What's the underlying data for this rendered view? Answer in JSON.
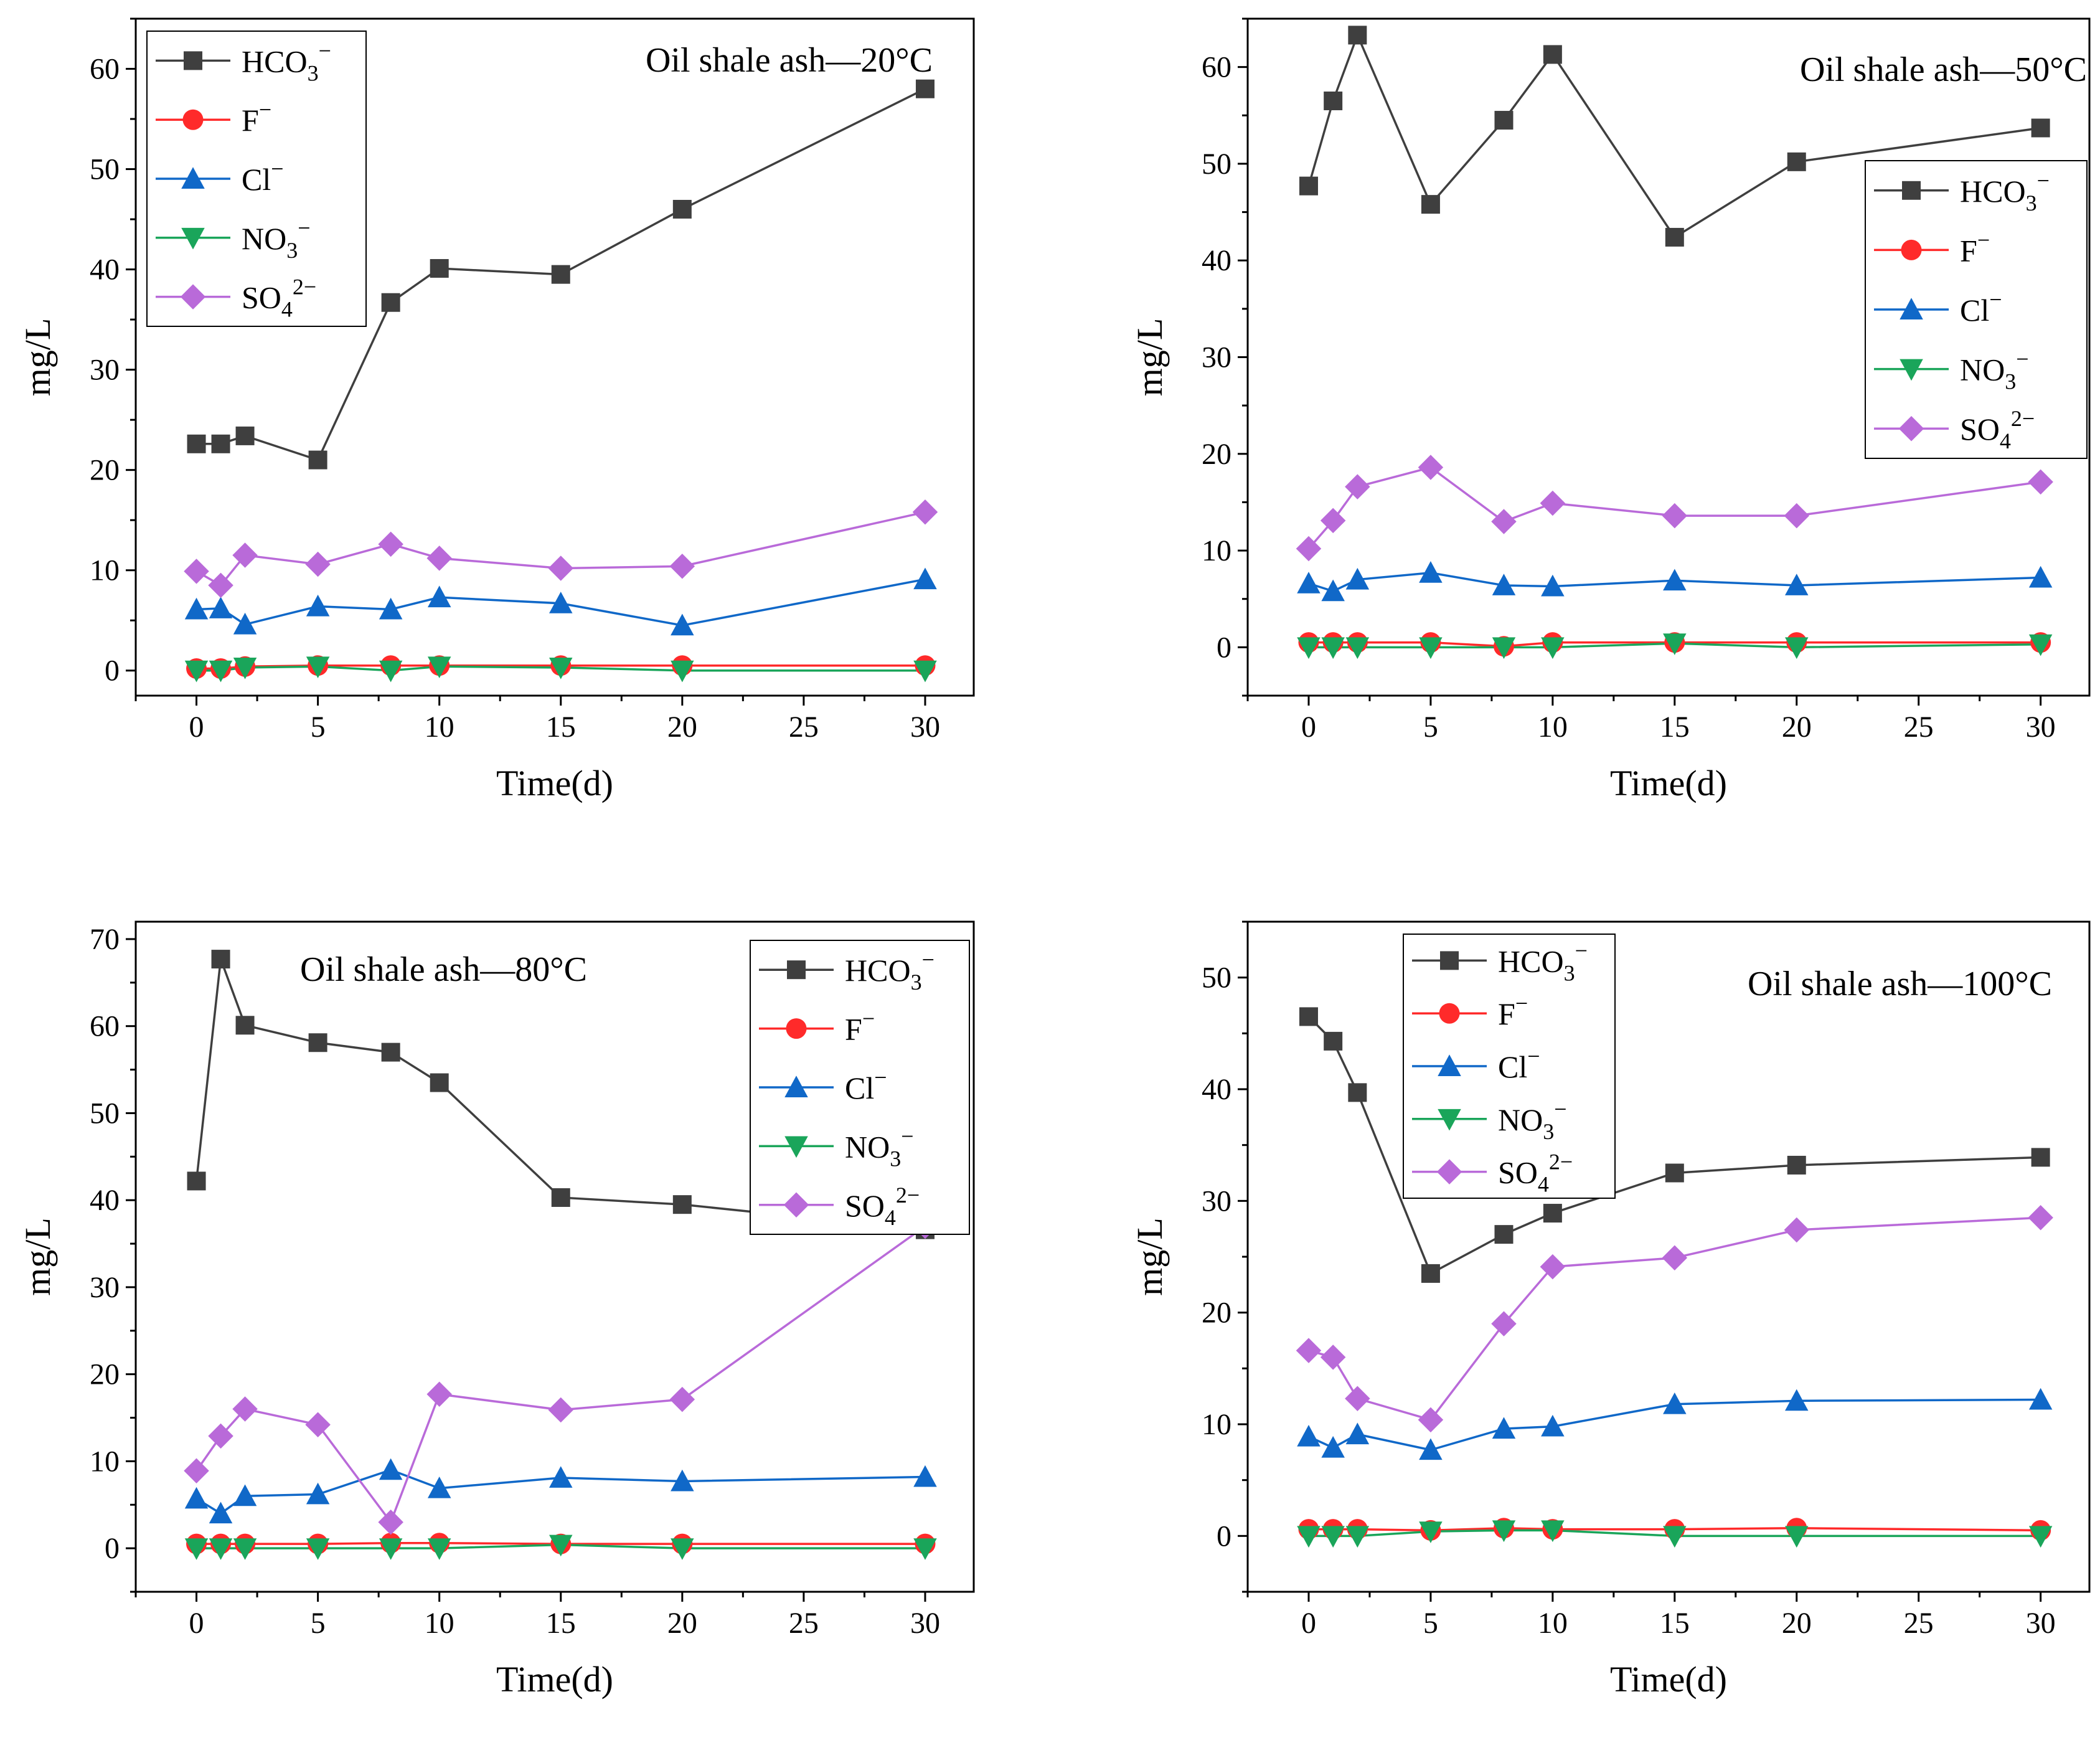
{
  "figure": {
    "description_free": true
  },
  "chart_data": [
    {
      "type": "line",
      "title": "Oil shale ash—20°C",
      "xlabel": "Time(d)",
      "ylabel": "mg/L",
      "xlim": [
        -2.5,
        32
      ],
      "ylim": [
        -2.5,
        65
      ],
      "xticks": [
        0,
        5,
        10,
        15,
        20,
        25,
        30
      ],
      "yticks": [
        0,
        10,
        20,
        30,
        40,
        50,
        60
      ],
      "legend_position": "top-left",
      "series": [
        {
          "name": "HCO3−",
          "base": "HCO",
          "sub": "3",
          "sup": "−",
          "color": "#3f3f3f",
          "marker": "square",
          "x": [
            0,
            1,
            2,
            5,
            8,
            10,
            15,
            20,
            30
          ],
          "values": [
            22.6,
            22.6,
            23.4,
            21.0,
            36.7,
            40.1,
            39.5,
            46.0,
            58.0
          ]
        },
        {
          "name": "F−",
          "base": "F",
          "sub": "",
          "sup": "−",
          "color": "#ff2a2a",
          "marker": "circle",
          "x": [
            0,
            1,
            2,
            5,
            8,
            10,
            15,
            20,
            30
          ],
          "values": [
            0.2,
            0.2,
            0.4,
            0.5,
            0.5,
            0.5,
            0.5,
            0.5,
            0.5
          ]
        },
        {
          "name": "Cl−",
          "base": "Cl",
          "sub": "",
          "sup": "−",
          "color": "#1068c8",
          "marker": "triangle-up",
          "x": [
            0,
            1,
            2,
            5,
            8,
            10,
            15,
            20,
            30
          ],
          "values": [
            6.1,
            6.2,
            4.6,
            6.4,
            6.1,
            7.3,
            6.7,
            4.5,
            9.1
          ]
        },
        {
          "name": "NO3−",
          "base": "NO",
          "sub": "3",
          "sup": "−",
          "color": "#1aa55a",
          "marker": "triangle-down",
          "x": [
            0,
            1,
            2,
            5,
            8,
            10,
            15,
            20,
            30
          ],
          "values": [
            0.0,
            0.0,
            0.3,
            0.4,
            0.0,
            0.4,
            0.3,
            0.0,
            0.0
          ]
        },
        {
          "name": "SO42−",
          "base": "SO",
          "sub": "4",
          "sup": "2−",
          "color": "#b96ad9",
          "marker": "diamond",
          "x": [
            0,
            1,
            2,
            5,
            8,
            10,
            15,
            20,
            30
          ],
          "values": [
            9.9,
            8.5,
            11.5,
            10.6,
            12.6,
            11.2,
            10.2,
            10.4,
            15.8
          ]
        }
      ]
    },
    {
      "type": "line",
      "title": "Oil shale ash—50°C",
      "xlabel": "Time(d)",
      "ylabel": "mg/L",
      "xlim": [
        -2.5,
        32
      ],
      "ylim": [
        -5,
        65
      ],
      "xticks": [
        0,
        5,
        10,
        15,
        20,
        25,
        30
      ],
      "yticks": [
        0,
        10,
        20,
        30,
        40,
        50,
        60
      ],
      "legend_position": "right",
      "series": [
        {
          "name": "HCO3−",
          "base": "HCO",
          "sub": "3",
          "sup": "−",
          "color": "#3f3f3f",
          "marker": "square",
          "x": [
            0,
            1,
            2,
            5,
            8,
            10,
            15,
            20,
            30
          ],
          "values": [
            47.7,
            56.5,
            63.3,
            45.8,
            54.5,
            61.3,
            42.4,
            50.2,
            53.7
          ]
        },
        {
          "name": "F−",
          "base": "F",
          "sub": "",
          "sup": "−",
          "color": "#ff2a2a",
          "marker": "circle",
          "x": [
            0,
            1,
            2,
            5,
            8,
            10,
            15,
            20,
            30
          ],
          "values": [
            0.5,
            0.5,
            0.5,
            0.5,
            0.1,
            0.5,
            0.5,
            0.5,
            0.5
          ]
        },
        {
          "name": "Cl−",
          "base": "Cl",
          "sub": "",
          "sup": "−",
          "color": "#1068c8",
          "marker": "triangle-up",
          "x": [
            0,
            1,
            2,
            5,
            8,
            10,
            15,
            20,
            30
          ],
          "values": [
            6.6,
            5.8,
            7.0,
            7.7,
            6.4,
            6.3,
            6.9,
            6.4,
            7.2
          ]
        },
        {
          "name": "NO3−",
          "base": "NO",
          "sub": "3",
          "sup": "−",
          "color": "#1aa55a",
          "marker": "triangle-down",
          "x": [
            0,
            1,
            2,
            5,
            8,
            10,
            15,
            20,
            30
          ],
          "values": [
            0.0,
            0.0,
            0.0,
            0.0,
            0.0,
            0.0,
            0.4,
            0.0,
            0.3
          ]
        },
        {
          "name": "SO42−",
          "base": "SO",
          "sub": "4",
          "sup": "2−",
          "color": "#b96ad9",
          "marker": "diamond",
          "x": [
            0,
            1,
            2,
            5,
            8,
            10,
            15,
            20,
            30
          ],
          "values": [
            10.2,
            13.1,
            16.6,
            18.6,
            13.0,
            14.9,
            13.6,
            13.6,
            17.1
          ]
        }
      ]
    },
    {
      "type": "line",
      "title": "Oil shale ash—80°C",
      "xlabel": "Time(d)",
      "ylabel": "mg/L",
      "xlim": [
        -2.5,
        32
      ],
      "ylim": [
        -5,
        72
      ],
      "xticks": [
        0,
        5,
        10,
        15,
        20,
        25,
        30
      ],
      "yticks": [
        0,
        10,
        20,
        30,
        40,
        50,
        60,
        70
      ],
      "legend_position": "top-right",
      "series": [
        {
          "name": "HCO3−",
          "base": "HCO",
          "sub": "3",
          "sup": "−",
          "color": "#3f3f3f",
          "marker": "square",
          "x": [
            0,
            1,
            2,
            5,
            8,
            10,
            15,
            20,
            30
          ],
          "values": [
            42.2,
            67.7,
            60.1,
            58.1,
            57.0,
            53.5,
            40.3,
            39.5,
            36.6
          ]
        },
        {
          "name": "F−",
          "base": "F",
          "sub": "",
          "sup": "−",
          "color": "#ff2a2a",
          "marker": "circle",
          "x": [
            0,
            1,
            2,
            5,
            8,
            10,
            15,
            20,
            30
          ],
          "values": [
            0.5,
            0.5,
            0.5,
            0.5,
            0.6,
            0.6,
            0.5,
            0.5,
            0.5
          ]
        },
        {
          "name": "Cl−",
          "base": "Cl",
          "sub": "",
          "sup": "−",
          "color": "#1068c8",
          "marker": "triangle-up",
          "x": [
            0,
            1,
            2,
            5,
            8,
            10,
            15,
            20,
            30
          ],
          "values": [
            5.7,
            4.0,
            6.0,
            6.2,
            9.0,
            6.9,
            8.1,
            7.7,
            8.2
          ]
        },
        {
          "name": "NO3−",
          "base": "NO",
          "sub": "3",
          "sup": "−",
          "color": "#1aa55a",
          "marker": "triangle-down",
          "x": [
            0,
            1,
            2,
            5,
            8,
            10,
            15,
            20,
            30
          ],
          "values": [
            0.0,
            0.0,
            0.0,
            0.0,
            0.0,
            0.0,
            0.4,
            0.0,
            0.0
          ]
        },
        {
          "name": "SO42−",
          "base": "SO",
          "sub": "4",
          "sup": "2−",
          "color": "#b96ad9",
          "marker": "diamond",
          "x": [
            0,
            1,
            2,
            5,
            8,
            10,
            15,
            20,
            30
          ],
          "values": [
            8.9,
            12.9,
            16.0,
            14.2,
            3.0,
            17.7,
            15.9,
            17.1,
            37.0
          ]
        }
      ]
    },
    {
      "type": "line",
      "title": "Oil shale ash—100°C",
      "xlabel": "Time(d)",
      "ylabel": "mg/L",
      "xlim": [
        -2.5,
        32
      ],
      "ylim": [
        -5,
        55
      ],
      "xticks": [
        0,
        5,
        10,
        15,
        20,
        25,
        30
      ],
      "yticks": [
        0,
        10,
        20,
        30,
        40,
        50
      ],
      "legend_position": "top-left",
      "series": [
        {
          "name": "HCO3−",
          "base": "HCO",
          "sub": "3",
          "sup": "−",
          "color": "#3f3f3f",
          "marker": "square",
          "x": [
            0,
            1,
            2,
            5,
            8,
            10,
            15,
            20,
            30
          ],
          "values": [
            46.5,
            44.3,
            39.7,
            23.5,
            27.0,
            28.9,
            32.5,
            33.2,
            33.9
          ]
        },
        {
          "name": "F−",
          "base": "F",
          "sub": "",
          "sup": "−",
          "color": "#ff2a2a",
          "marker": "circle",
          "x": [
            0,
            1,
            2,
            5,
            8,
            10,
            15,
            20,
            30
          ],
          "values": [
            0.6,
            0.6,
            0.6,
            0.5,
            0.7,
            0.6,
            0.6,
            0.7,
            0.5
          ]
        },
        {
          "name": "Cl−",
          "base": "Cl",
          "sub": "",
          "sup": "−",
          "color": "#1068c8",
          "marker": "triangle-up",
          "x": [
            0,
            1,
            2,
            5,
            8,
            10,
            15,
            20,
            30
          ],
          "values": [
            8.9,
            7.9,
            9.1,
            7.7,
            9.6,
            9.8,
            11.8,
            12.1,
            12.2
          ]
        },
        {
          "name": "NO3−",
          "base": "NO",
          "sub": "3",
          "sup": "−",
          "color": "#1aa55a",
          "marker": "triangle-down",
          "x": [
            0,
            1,
            2,
            5,
            8,
            10,
            15,
            20,
            30
          ],
          "values": [
            0.0,
            0.0,
            0.0,
            0.4,
            0.5,
            0.5,
            0.0,
            0.0,
            0.0
          ]
        },
        {
          "name": "SO42−",
          "base": "SO",
          "sub": "4",
          "sup": "2−",
          "color": "#b96ad9",
          "marker": "diamond",
          "x": [
            0,
            1,
            2,
            5,
            8,
            10,
            15,
            20,
            30
          ],
          "values": [
            16.6,
            16.0,
            12.3,
            10.4,
            19.0,
            24.1,
            24.9,
            27.4,
            28.5
          ]
        }
      ]
    }
  ]
}
